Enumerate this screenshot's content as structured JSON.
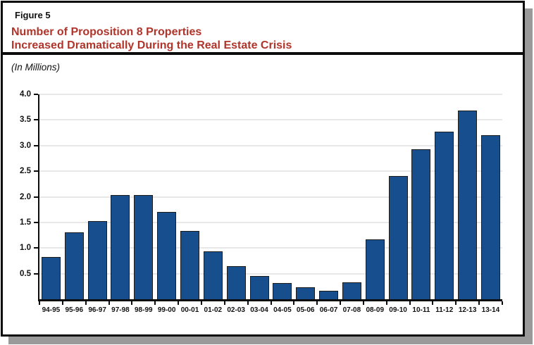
{
  "figure": {
    "label": "Figure 5",
    "title_line1": "Number of Proposition 8 Properties",
    "title_line2": "Increased Dramatically During the Real Estate Crisis",
    "units_note": "(In Millions)"
  },
  "colors": {
    "title_red": "#b0342a",
    "bar_fill": "#174f8e",
    "bar_border": "#1c1c1c",
    "gridline": "#e8e8e8",
    "axis": "#0c0c0c",
    "shadow": "#9a9a9a"
  },
  "chart_data": {
    "type": "bar",
    "title": "Number of Proposition 8 Properties Increased Dramatically During the Real Estate Crisis",
    "subtitle": "(In Millions)",
    "categories": [
      "94-95",
      "95-96",
      "96-97",
      "97-98",
      "98-99",
      "99-00",
      "00-01",
      "01-02",
      "02-03",
      "03-04",
      "04-05",
      "05-06",
      "06-07",
      "07-08",
      "08-09",
      "09-10",
      "10-11",
      "11-12",
      "12-13",
      "13-14"
    ],
    "values": [
      0.83,
      1.3,
      1.52,
      2.04,
      2.04,
      1.7,
      1.33,
      0.93,
      0.65,
      0.46,
      0.31,
      0.24,
      0.17,
      0.33,
      1.17,
      2.4,
      2.93,
      3.27,
      3.69,
      3.2
    ],
    "xlabel": "",
    "ylabel": "",
    "ylim": [
      0,
      4.0
    ],
    "ytick_interval": 0.5,
    "ytick_labels": [
      "0.5",
      "1.0",
      "1.5",
      "2.0",
      "2.5",
      "3.0",
      "3.5",
      "4.0"
    ],
    "grid": true,
    "legend": false
  }
}
